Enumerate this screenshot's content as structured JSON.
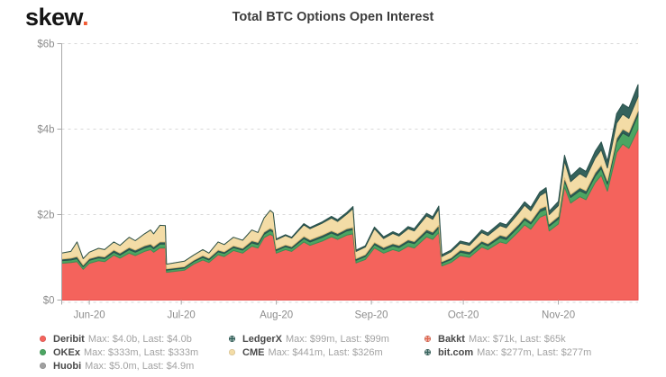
{
  "header": {
    "logo_text": "skew",
    "logo_dot": "."
  },
  "chart_data": {
    "type": "area",
    "stacked": true,
    "title": "Total BTC Options Open Interest",
    "unit": "USD billions",
    "ylim": [
      0,
      6
    ],
    "grid": "dashed-horizontal",
    "legend_position": "bottom",
    "y_axis": {
      "ticks": [
        {
          "label": "$0",
          "value": 0
        },
        {
          "label": "$2b",
          "value": 2
        },
        {
          "label": "$4b",
          "value": 4
        },
        {
          "label": "$6b",
          "value": 6
        }
      ]
    },
    "x_axis": {
      "ticks": [
        {
          "label": "Jun-20",
          "day": 9
        },
        {
          "label": "Jul-20",
          "day": 39
        },
        {
          "label": "Aug-20",
          "day": 70
        },
        {
          "label": "Sep-20",
          "day": 101
        },
        {
          "label": "Oct-20",
          "day": 131
        },
        {
          "label": "Nov-20",
          "day": 162
        }
      ]
    },
    "x_days": [
      0,
      3,
      5,
      7,
      9,
      12,
      14,
      17,
      19,
      22,
      24,
      27,
      29,
      30,
      32,
      33.8,
      34.2,
      40,
      43,
      46,
      48,
      51,
      53,
      56,
      59,
      62,
      64,
      66,
      68,
      69,
      70,
      73,
      75,
      79,
      81,
      85,
      88,
      90,
      93,
      95,
      96,
      99,
      102,
      105,
      108,
      110,
      113,
      115,
      119,
      121,
      123,
      124,
      127,
      130,
      133,
      137,
      139,
      143,
      145,
      149,
      151,
      153,
      156,
      158,
      159,
      162,
      164,
      166,
      169,
      171,
      174,
      176,
      178,
      181,
      183,
      185,
      186,
      188
    ],
    "series": [
      {
        "name": "Deribit",
        "color": "#f4635c",
        "stroke": "#e8514e",
        "patterned": false,
        "legend_col": 0,
        "stats": "Max: $4.0b, Last: $4.0b",
        "values": [
          0.86,
          0.88,
          0.9,
          0.72,
          0.86,
          0.92,
          0.9,
          1.05,
          0.98,
          1.1,
          1.04,
          1.14,
          1.18,
          1.12,
          1.22,
          1.22,
          0.65,
          0.7,
          0.84,
          0.94,
          0.88,
          1.06,
          1.02,
          1.16,
          1.1,
          1.26,
          1.22,
          1.46,
          1.54,
          1.5,
          1.1,
          1.18,
          1.14,
          1.36,
          1.28,
          1.38,
          1.48,
          1.42,
          1.52,
          1.55,
          0.87,
          0.95,
          1.22,
          1.1,
          1.18,
          1.14,
          1.26,
          1.22,
          1.48,
          1.42,
          1.58,
          0.8,
          0.88,
          1.04,
          1.0,
          1.24,
          1.18,
          1.36,
          1.32,
          1.6,
          1.76,
          1.66,
          1.94,
          2.0,
          1.62,
          1.78,
          2.65,
          2.27,
          2.42,
          2.35,
          2.75,
          2.92,
          2.55,
          3.45,
          3.65,
          3.55,
          3.7,
          4.0
        ]
      },
      {
        "name": "OKEx",
        "color": "#4ca562",
        "stroke": "#3d8f53",
        "patterned": false,
        "legend_col": 0,
        "stats": "Max: $333m, Last: $333m",
        "values": [
          0.06,
          0.06,
          0.07,
          0.06,
          0.07,
          0.07,
          0.07,
          0.07,
          0.07,
          0.08,
          0.08,
          0.08,
          0.08,
          0.08,
          0.09,
          0.09,
          0.05,
          0.05,
          0.06,
          0.06,
          0.06,
          0.07,
          0.07,
          0.07,
          0.07,
          0.08,
          0.08,
          0.08,
          0.09,
          0.09,
          0.06,
          0.07,
          0.07,
          0.08,
          0.08,
          0.09,
          0.09,
          0.09,
          0.1,
          0.1,
          0.06,
          0.07,
          0.08,
          0.08,
          0.09,
          0.09,
          0.1,
          0.1,
          0.11,
          0.11,
          0.11,
          0.06,
          0.07,
          0.08,
          0.08,
          0.09,
          0.09,
          0.1,
          0.1,
          0.11,
          0.12,
          0.12,
          0.13,
          0.13,
          0.11,
          0.12,
          0.14,
          0.13,
          0.14,
          0.14,
          0.15,
          0.16,
          0.16,
          0.24,
          0.26,
          0.28,
          0.3,
          0.33
        ]
      },
      {
        "name": "Huobi",
        "color": "#a0a0a0",
        "stroke": "#8a8a8a",
        "patterned": false,
        "legend_col": 0,
        "stats": "Max: $5.0m, Last: $4.9m",
        "values": null,
        "note": "too small to be visible on this scale"
      },
      {
        "name": "LedgerX",
        "color": "#2f5f58",
        "stroke": "#284f49",
        "patterned": true,
        "legend_col": 1,
        "stats": "Max: $99m, Last: $99m",
        "values": [
          0.04,
          0.04,
          0.05,
          0.04,
          0.04,
          0.04,
          0.04,
          0.05,
          0.05,
          0.05,
          0.05,
          0.05,
          0.05,
          0.05,
          0.05,
          0.05,
          0.03,
          0.03,
          0.03,
          0.04,
          0.04,
          0.04,
          0.04,
          0.04,
          0.04,
          0.05,
          0.05,
          0.05,
          0.05,
          0.05,
          0.04,
          0.04,
          0.04,
          0.05,
          0.05,
          0.05,
          0.05,
          0.05,
          0.05,
          0.05,
          0.04,
          0.04,
          0.05,
          0.05,
          0.05,
          0.05,
          0.05,
          0.05,
          0.06,
          0.06,
          0.06,
          0.04,
          0.04,
          0.05,
          0.05,
          0.05,
          0.05,
          0.06,
          0.06,
          0.06,
          0.06,
          0.06,
          0.07,
          0.07,
          0.05,
          0.06,
          0.07,
          0.07,
          0.07,
          0.07,
          0.08,
          0.08,
          0.08,
          0.09,
          0.09,
          0.09,
          0.09,
          0.1
        ]
      },
      {
        "name": "CME",
        "color": "#f3dca6",
        "stroke": "#e3bf7a",
        "patterned": false,
        "legend_col": 1,
        "stats": "Max: $441m, Last: $326m",
        "values": [
          0.14,
          0.16,
          0.34,
          0.15,
          0.15,
          0.18,
          0.17,
          0.19,
          0.18,
          0.24,
          0.22,
          0.28,
          0.33,
          0.3,
          0.39,
          0.38,
          0.11,
          0.13,
          0.12,
          0.14,
          0.12,
          0.19,
          0.17,
          0.2,
          0.19,
          0.25,
          0.23,
          0.33,
          0.42,
          0.4,
          0.21,
          0.22,
          0.2,
          0.27,
          0.26,
          0.28,
          0.3,
          0.28,
          0.34,
          0.44,
          0.17,
          0.18,
          0.32,
          0.21,
          0.24,
          0.22,
          0.26,
          0.25,
          0.32,
          0.3,
          0.38,
          0.12,
          0.14,
          0.16,
          0.15,
          0.2,
          0.19,
          0.22,
          0.21,
          0.26,
          0.28,
          0.25,
          0.3,
          0.33,
          0.22,
          0.25,
          0.4,
          0.3,
          0.33,
          0.31,
          0.34,
          0.36,
          0.3,
          0.36,
          0.35,
          0.33,
          0.33,
          0.33
        ]
      },
      {
        "name": "Bakkt",
        "color": "#e2674f",
        "stroke": "#c95540",
        "patterned": true,
        "legend_col": 2,
        "stats": "Max: $71k, Last: $65k",
        "values": null,
        "note": "too small to be visible on this scale"
      },
      {
        "name": "bit.com",
        "color": "#35625c",
        "stroke": "#2b524d",
        "patterned": true,
        "legend_col": 2,
        "stats": "Max: $277m, Last: $277m",
        "values": [
          0,
          0,
          0,
          0,
          0,
          0,
          0,
          0,
          0,
          0,
          0,
          0,
          0,
          0,
          0,
          0,
          0,
          0,
          0,
          0,
          0,
          0,
          0,
          0,
          0,
          0,
          0,
          0,
          0,
          0,
          0.02,
          0.02,
          0.02,
          0.03,
          0.03,
          0.03,
          0.04,
          0.04,
          0.04,
          0.05,
          0.03,
          0.03,
          0.04,
          0.04,
          0.04,
          0.04,
          0.05,
          0.05,
          0.06,
          0.06,
          0.07,
          0.04,
          0.04,
          0.05,
          0.05,
          0.06,
          0.06,
          0.07,
          0.07,
          0.08,
          0.08,
          0.08,
          0.09,
          0.1,
          0.08,
          0.1,
          0.13,
          0.13,
          0.14,
          0.14,
          0.16,
          0.18,
          0.16,
          0.22,
          0.24,
          0.25,
          0.26,
          0.28
        ]
      }
    ]
  }
}
